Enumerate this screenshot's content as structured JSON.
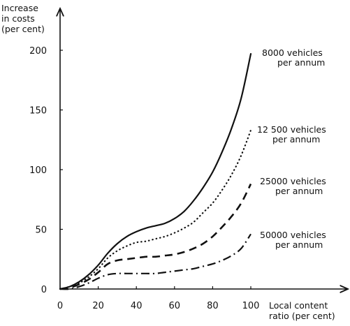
{
  "chart_data": {
    "type": "line",
    "ylabel": [
      "Increase",
      "in costs",
      "(per cent)"
    ],
    "xlabel": [
      "Local content",
      "ratio (per cent)"
    ],
    "xlim": [
      0,
      100
    ],
    "ylim": [
      0,
      200
    ],
    "x_ticks": [
      "0",
      "20",
      "40",
      "60",
      "80",
      "100"
    ],
    "y_ticks": [
      "0",
      "50",
      "100",
      "150",
      "200"
    ],
    "grid": false,
    "legend": "labels at line ends",
    "series": [
      {
        "name": [
          "8000 vehicles",
          "per annum"
        ],
        "style": "solid",
        "x": [
          0,
          5,
          10,
          15,
          20,
          25,
          30,
          35,
          40,
          45,
          50,
          55,
          60,
          65,
          70,
          75,
          80,
          85,
          90,
          95,
          100
        ],
        "y": [
          0,
          2,
          6,
          12,
          20,
          30,
          38,
          44,
          48,
          51,
          53,
          55,
          59,
          65,
          74,
          85,
          98,
          115,
          135,
          160,
          197
        ]
      },
      {
        "name": [
          "12 500 vehicles",
          "per annum"
        ],
        "style": "dotted",
        "x": [
          0,
          5,
          10,
          15,
          20,
          25,
          30,
          35,
          40,
          45,
          50,
          55,
          60,
          65,
          70,
          75,
          80,
          85,
          90,
          95,
          100
        ],
        "y": [
          0,
          2,
          5,
          10,
          17,
          26,
          32,
          36,
          39,
          40,
          42,
          44,
          47,
          51,
          56,
          64,
          72,
          83,
          96,
          112,
          133
        ]
      },
      {
        "name": [
          "25000 vehicles",
          "per annum"
        ],
        "style": "dashed",
        "x": [
          0,
          5,
          10,
          15,
          20,
          25,
          30,
          35,
          40,
          45,
          50,
          55,
          60,
          65,
          70,
          75,
          80,
          85,
          90,
          95,
          100
        ],
        "y": [
          0,
          1,
          4,
          8,
          14,
          21,
          24,
          25,
          26,
          27,
          27,
          28,
          29,
          31,
          34,
          38,
          44,
          52,
          61,
          72,
          88
        ]
      },
      {
        "name": [
          "50000 vehicles",
          "per annum"
        ],
        "style": "dash-dot",
        "x": [
          0,
          5,
          10,
          15,
          20,
          25,
          30,
          35,
          40,
          45,
          50,
          55,
          60,
          65,
          70,
          75,
          80,
          85,
          90,
          95,
          100
        ],
        "y": [
          0,
          0,
          2,
          5,
          9,
          12,
          13,
          13,
          13,
          13,
          13,
          14,
          15,
          16,
          17,
          19,
          21,
          24,
          28,
          34,
          46
        ]
      }
    ]
  }
}
